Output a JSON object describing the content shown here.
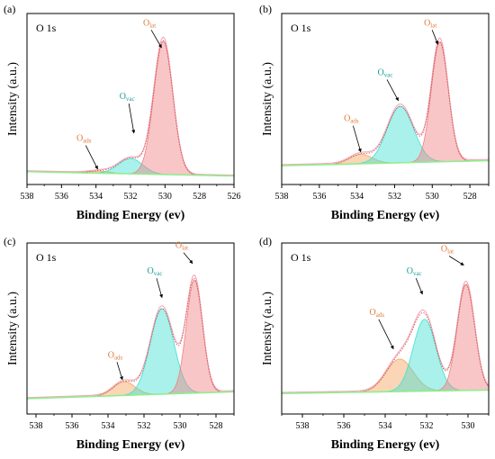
{
  "chart_data": [
    {
      "panel": "(a)",
      "type": "line",
      "title": "O 1s",
      "xlabel": "Binding Energy (ev)",
      "ylabel": "Intensity (a.u.)",
      "xlim": [
        538,
        526
      ],
      "ylim": [
        0,
        1
      ],
      "x_reversed": true,
      "xticks": [
        538,
        536,
        534,
        532,
        530,
        528,
        526
      ],
      "baseline": [
        0.075,
        0.05
      ],
      "peaks": [
        {
          "name": "Oads",
          "center": 533.8,
          "sigma": 0.6,
          "height": 0.012,
          "color": "#f4a460"
        },
        {
          "name": "Ovac",
          "center": 532.0,
          "sigma": 0.7,
          "height": 0.09,
          "color": "#40e0d0"
        },
        {
          "name": "Olat",
          "center": 530.1,
          "sigma": 0.55,
          "height": 0.78,
          "color": "#f08080"
        }
      ],
      "annotations": [
        {
          "base": "O",
          "sub": "ads",
          "color": "#e07b39",
          "label_x": 534.7,
          "label_y": 0.255,
          "arrow_x": 533.9,
          "arrow_y": 0.09
        },
        {
          "base": "O",
          "sub": "vac",
          "color": "#1a9e96",
          "label_x": 532.2,
          "label_y": 0.5,
          "arrow_x": 531.8,
          "arrow_y": 0.3
        },
        {
          "base": "O",
          "sub": "lat",
          "color": "#e07b39",
          "label_x": 530.9,
          "label_y": 0.93,
          "arrow_x": 530.2,
          "arrow_y": 0.8
        }
      ]
    },
    {
      "panel": "(b)",
      "type": "line",
      "title": "O 1s",
      "xlabel": "Binding Energy (ev)",
      "ylabel": "Intensity (a.u.)",
      "xlim": [
        538,
        527
      ],
      "ylim": [
        0,
        1
      ],
      "x_reversed": true,
      "xticks": [
        538,
        536,
        534,
        532,
        530,
        528
      ],
      "baseline": [
        0.11,
        0.14
      ],
      "peaks": [
        {
          "name": "Oads",
          "center": 533.8,
          "sigma": 0.6,
          "height": 0.055,
          "color": "#f4a460"
        },
        {
          "name": "Ovac",
          "center": 531.7,
          "sigma": 0.7,
          "height": 0.33,
          "color": "#40e0d0"
        },
        {
          "name": "Olat",
          "center": 529.6,
          "sigma": 0.45,
          "height": 0.7,
          "color": "#f08080"
        }
      ],
      "annotations": [
        {
          "base": "O",
          "sub": "ads",
          "color": "#e07b39",
          "label_x": 534.3,
          "label_y": 0.37,
          "arrow_x": 533.8,
          "arrow_y": 0.19
        },
        {
          "base": "O",
          "sub": "vac",
          "color": "#1a9e96",
          "label_x": 532.5,
          "label_y": 0.64,
          "arrow_x": 531.8,
          "arrow_y": 0.49
        },
        {
          "base": "O",
          "sub": "lat",
          "color": "#e07b39",
          "label_x": 530.1,
          "label_y": 0.93,
          "arrow_x": 529.7,
          "arrow_y": 0.82
        }
      ]
    },
    {
      "panel": "(c)",
      "type": "line",
      "title": "O 1s",
      "xlabel": "Binding Energy (ev)",
      "ylabel": "Intensity (a.u.)",
      "xlim": [
        538.5,
        527
      ],
      "ylim": [
        0,
        1
      ],
      "x_reversed": true,
      "xticks": [
        538,
        536,
        534,
        532,
        530,
        528
      ],
      "baseline": [
        0.09,
        0.13
      ],
      "peaks": [
        {
          "name": "Oads",
          "center": 533.1,
          "sigma": 0.6,
          "height": 0.08,
          "color": "#f4a460"
        },
        {
          "name": "Ovac",
          "center": 531.0,
          "sigma": 0.65,
          "height": 0.5,
          "color": "#40e0d0"
        },
        {
          "name": "Olat",
          "center": 529.2,
          "sigma": 0.45,
          "height": 0.66,
          "color": "#f08080"
        }
      ],
      "annotations": [
        {
          "base": "O",
          "sub": "ads",
          "color": "#e07b39",
          "label_x": 533.6,
          "label_y": 0.33,
          "arrow_x": 533.2,
          "arrow_y": 0.2
        },
        {
          "base": "O",
          "sub": "vac",
          "color": "#1a9e96",
          "label_x": 531.4,
          "label_y": 0.82,
          "arrow_x": 531.0,
          "arrow_y": 0.68
        },
        {
          "base": "O",
          "sub": "lat",
          "color": "#e07b39",
          "label_x": 529.9,
          "label_y": 0.97,
          "arrow_x": 529.3,
          "arrow_y": 0.88
        }
      ]
    },
    {
      "panel": "(d)",
      "type": "line",
      "title": "O 1s",
      "xlabel": "Binding Energy (ev)",
      "ylabel": "Intensity (a.u.)",
      "xlim": [
        539,
        529
      ],
      "ylim": [
        0,
        1
      ],
      "x_reversed": true,
      "xticks": [
        538,
        536,
        534,
        532,
        530
      ],
      "baseline": [
        0.12,
        0.14
      ],
      "peaks": [
        {
          "name": "Oads",
          "center": 533.3,
          "sigma": 0.65,
          "height": 0.19,
          "color": "#f4a460"
        },
        {
          "name": "Ovac",
          "center": 532.1,
          "sigma": 0.55,
          "height": 0.42,
          "color": "#40e0d0"
        },
        {
          "name": "Olat",
          "center": 530.1,
          "sigma": 0.42,
          "height": 0.62,
          "color": "#f08080"
        }
      ],
      "annotations": [
        {
          "base": "O",
          "sub": "ads",
          "color": "#e07b39",
          "label_x": 534.4,
          "label_y": 0.58,
          "arrow_x": 533.6,
          "arrow_y": 0.38
        },
        {
          "base": "O",
          "sub": "vac",
          "color": "#1a9e96",
          "label_x": 532.6,
          "label_y": 0.82,
          "arrow_x": 532.2,
          "arrow_y": 0.7
        },
        {
          "base": "O",
          "sub": "lat",
          "color": "#e07b39",
          "label_x": 531.0,
          "label_y": 0.95,
          "arrow_x": 530.2,
          "arrow_y": 0.87
        }
      ]
    }
  ]
}
